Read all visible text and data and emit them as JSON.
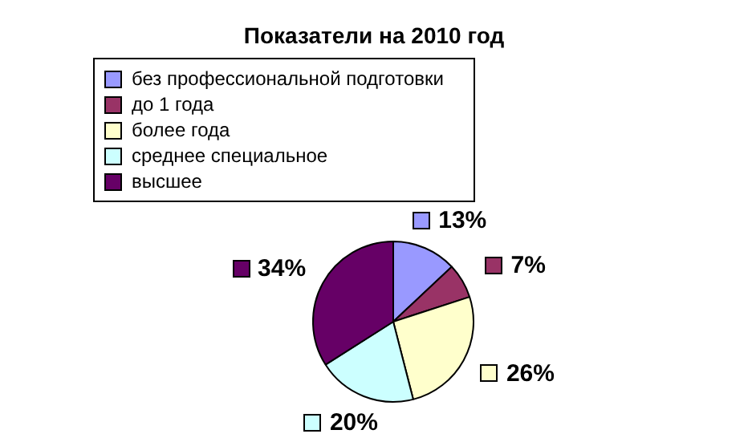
{
  "chart_data": {
    "type": "pie",
    "title": "Показатели на 2010 год",
    "categories": [
      "без профессиональной подготовки",
      "до 1 года",
      "более года",
      "среднее специальное",
      "высшее"
    ],
    "values": [
      13,
      7,
      26,
      20,
      34
    ],
    "colors": [
      "#9999ff",
      "#993366",
      "#ffffcc",
      "#ccffff",
      "#660066"
    ],
    "value_labels": [
      "13%",
      "7%",
      "26%",
      "20%",
      "34%"
    ],
    "legend": "top"
  }
}
